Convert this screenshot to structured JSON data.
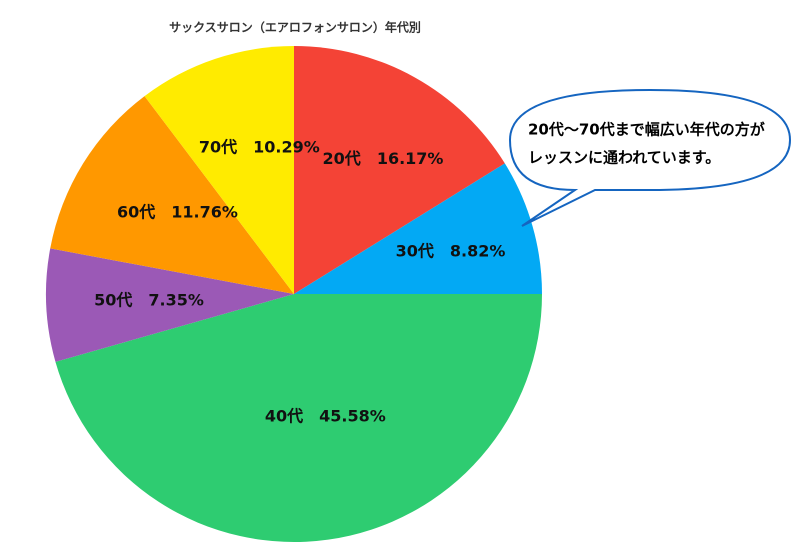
{
  "chart_data": {
    "type": "pie",
    "title": "サックスサロン（エアロフォンサロン）年代別",
    "categories": [
      "20代",
      "30代",
      "40代",
      "50代",
      "60代",
      "70代"
    ],
    "values": [
      16.17,
      8.82,
      45.58,
      7.35,
      11.76,
      10.29
    ],
    "value_labels": [
      "16.17%",
      "8.82%",
      "45.58%",
      "7.35%",
      "11.76%",
      "10.29%"
    ],
    "colors": [
      "#f44336",
      "#03a9f4",
      "#2ecc71",
      "#9b59b6",
      "#ff9800",
      "#ffeb00"
    ],
    "annotation": [
      "20代～70代まで幅広い年代の方が",
      "レッスンに通われています。"
    ]
  }
}
